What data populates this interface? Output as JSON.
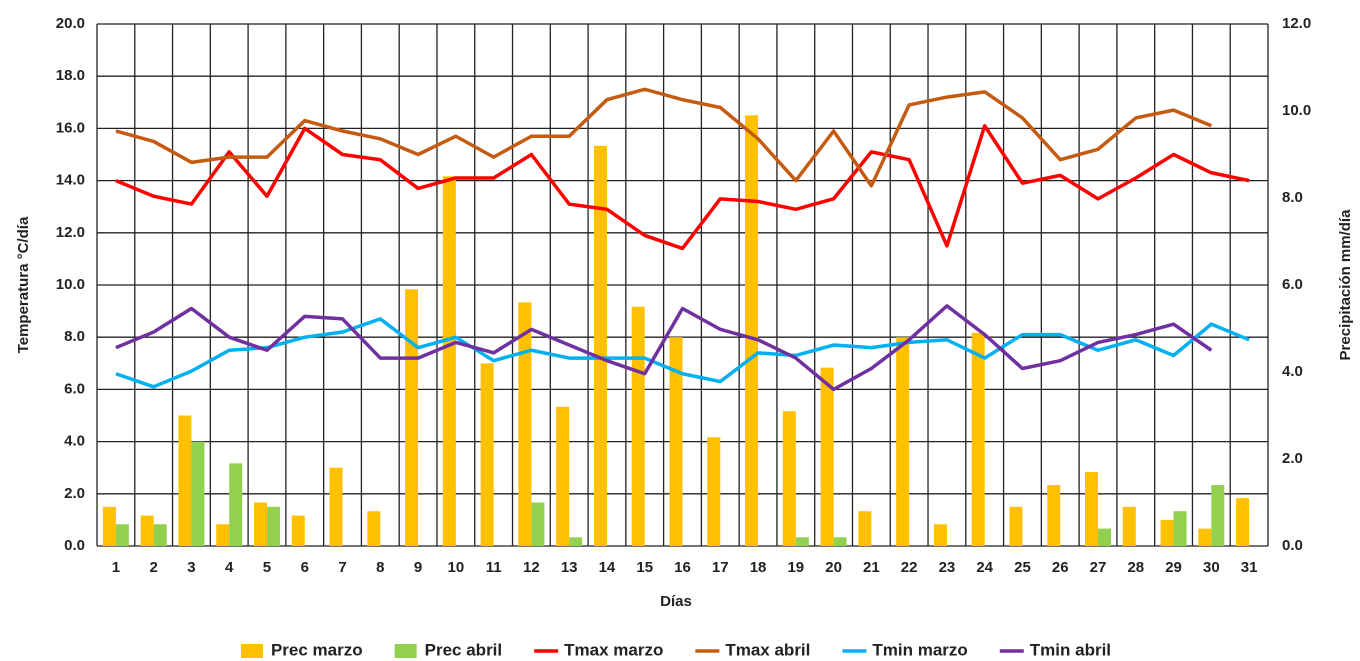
{
  "chart_data": {
    "type": "bar-line",
    "x_label": "Días",
    "y_label": "Temperatura °C/día",
    "y2_label": "Precipitación mm/día",
    "categories": [
      "1",
      "2",
      "3",
      "4",
      "5",
      "6",
      "7",
      "8",
      "9",
      "10",
      "11",
      "12",
      "13",
      "14",
      "15",
      "16",
      "17",
      "18",
      "19",
      "20",
      "21",
      "22",
      "23",
      "24",
      "25",
      "26",
      "27",
      "28",
      "29",
      "30",
      "31"
    ],
    "ylim": [
      0,
      20
    ],
    "yticks": [
      {
        "value": 0,
        "label": "0.0"
      },
      {
        "value": 2,
        "label": "2.0"
      },
      {
        "value": 4,
        "label": "4.0"
      },
      {
        "value": 6,
        "label": "6.0"
      },
      {
        "value": 8,
        "label": "8.0"
      },
      {
        "value": 10,
        "label": "10.0"
      },
      {
        "value": 12,
        "label": "12.0"
      },
      {
        "value": 14,
        "label": "14.0"
      },
      {
        "value": 16,
        "label": "16.0"
      },
      {
        "value": 18,
        "label": "18.0"
      },
      {
        "value": 20,
        "label": "20.0"
      }
    ],
    "y2lim": [
      0,
      12
    ],
    "y2ticks": [
      {
        "value": 0,
        "label": "0.0"
      },
      {
        "value": 2,
        "label": "2.0"
      },
      {
        "value": 4,
        "label": "4.0"
      },
      {
        "value": 6,
        "label": "6.0"
      },
      {
        "value": 8,
        "label": "8.0"
      },
      {
        "value": 10,
        "label": "10.0"
      },
      {
        "value": 12,
        "label": "12.0"
      }
    ],
    "grid": true,
    "legend": "bottom",
    "series": [
      {
        "name": "Prec marzo",
        "type": "bar",
        "axis": "y2",
        "color": "#ffc000",
        "values": [
          0.9,
          0.7,
          3.0,
          0.5,
          1.0,
          0.7,
          1.8,
          0.8,
          5.9,
          8.5,
          4.2,
          5.6,
          3.2,
          9.2,
          5.5,
          4.8,
          2.5,
          9.9,
          3.1,
          4.1,
          0.8,
          4.8,
          0.5,
          4.9,
          0.9,
          1.4,
          1.7,
          0.9,
          0.6,
          0.4,
          1.1
        ]
      },
      {
        "name": "Prec abril",
        "type": "bar",
        "axis": "y2",
        "color": "#92d050",
        "values": [
          0.5,
          0.5,
          2.4,
          1.9,
          0.9,
          0,
          0,
          0,
          0,
          0,
          0,
          1.0,
          0.2,
          0,
          0,
          0,
          0,
          0,
          0.2,
          0.2,
          0,
          0,
          0,
          0,
          0,
          0,
          0.4,
          0,
          0.8,
          1.4,
          null
        ]
      },
      {
        "name": "Tmax marzo",
        "type": "line",
        "color": "#ff0000",
        "values": [
          14.0,
          13.4,
          13.1,
          15.1,
          13.4,
          16.0,
          15.0,
          14.8,
          13.7,
          14.1,
          14.1,
          15.0,
          13.1,
          12.9,
          11.9,
          11.4,
          13.3,
          13.2,
          12.9,
          13.3,
          15.1,
          14.8,
          11.5,
          16.1,
          13.9,
          14.2,
          13.3,
          14.1,
          15.0,
          14.3,
          14.0
        ]
      },
      {
        "name": "Tmax abril",
        "type": "line",
        "color": "#c55a11",
        "values": [
          15.9,
          15.5,
          14.7,
          14.9,
          14.9,
          16.3,
          15.9,
          15.6,
          15.0,
          15.7,
          14.9,
          15.7,
          15.7,
          17.1,
          17.5,
          17.1,
          16.8,
          15.6,
          14.0,
          15.9,
          13.8,
          16.9,
          17.2,
          17.4,
          16.4,
          14.8,
          15.2,
          16.4,
          16.7,
          16.1,
          null
        ]
      },
      {
        "name": "Tmin marzo",
        "type": "line",
        "color": "#00b0f0",
        "values": [
          6.6,
          6.1,
          6.7,
          7.5,
          7.6,
          8.0,
          8.2,
          8.7,
          7.6,
          8.0,
          7.1,
          7.5,
          7.2,
          7.2,
          7.2,
          6.6,
          6.3,
          7.4,
          7.3,
          7.7,
          7.6,
          7.8,
          7.9,
          7.2,
          8.1,
          8.1,
          7.5,
          7.9,
          7.3,
          8.5,
          7.9
        ]
      },
      {
        "name": "Tmin abril",
        "type": "line",
        "color": "#7030a0",
        "values": [
          7.6,
          8.2,
          9.1,
          8.0,
          7.5,
          8.8,
          8.7,
          7.2,
          7.2,
          7.8,
          7.4,
          8.3,
          7.7,
          7.1,
          6.6,
          9.1,
          8.3,
          7.9,
          7.2,
          6.0,
          6.8,
          7.9,
          9.2,
          8.1,
          6.8,
          7.1,
          7.8,
          8.1,
          8.5,
          7.5,
          null
        ]
      }
    ]
  }
}
